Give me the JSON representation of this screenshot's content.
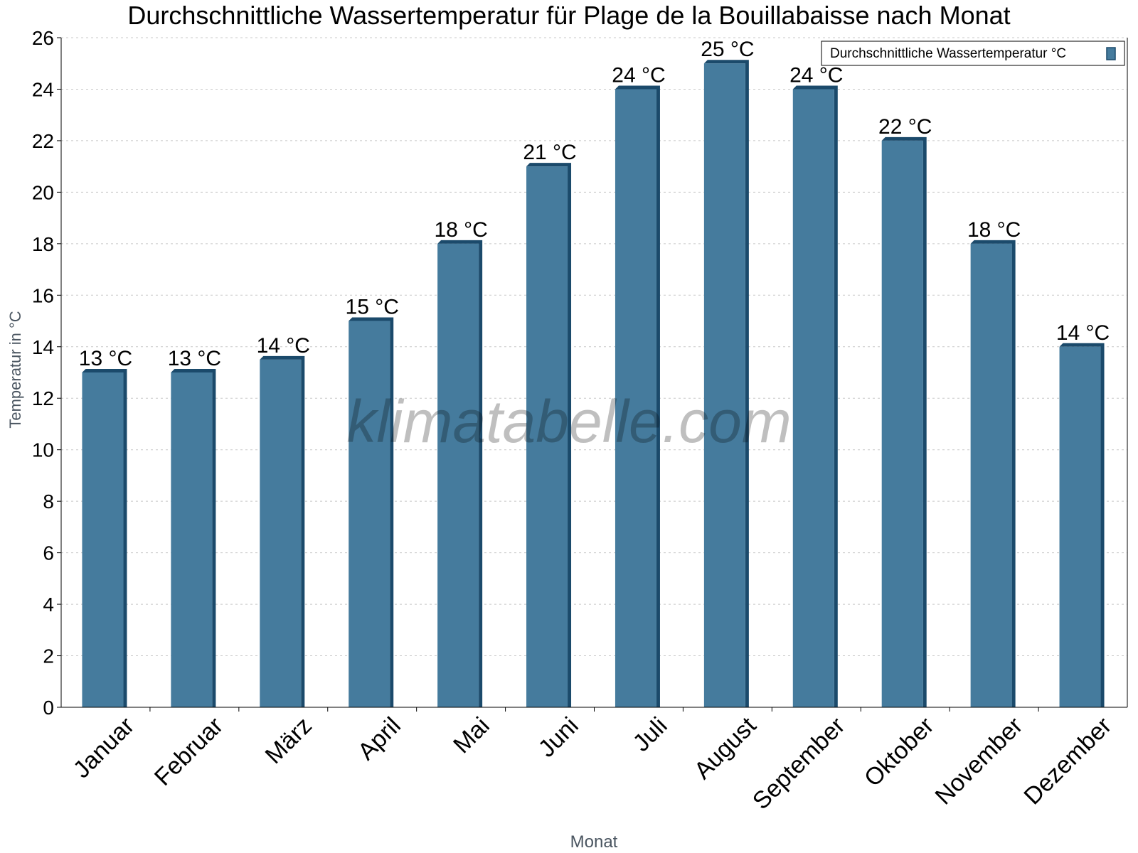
{
  "chart_data": {
    "type": "bar",
    "title": "Durchschnittliche Wassertemperatur für Plage de la Bouillabaisse nach Monat",
    "xlabel": "Monat",
    "ylabel": "Temperatur in °C",
    "ylim": [
      0,
      26
    ],
    "yticks": [
      0,
      2,
      4,
      6,
      8,
      10,
      12,
      14,
      16,
      18,
      20,
      22,
      24,
      26
    ],
    "grid": true,
    "legend_position": "top-right",
    "categories": [
      "Januar",
      "Februar",
      "März",
      "April",
      "Mai",
      "Juni",
      "Juli",
      "August",
      "September",
      "Oktober",
      "November",
      "Dezember"
    ],
    "series": [
      {
        "name": "Durchschnittliche Wassertemperatur °C",
        "color": "#457b9d",
        "values": [
          13,
          13,
          13.5,
          15,
          18,
          21,
          24,
          25,
          24,
          22,
          18,
          14
        ],
        "data_labels": [
          "13 °C",
          "13 °C",
          "14 °C",
          "15 °C",
          "18 °C",
          "21 °C",
          "24 °C",
          "25 °C",
          "24 °C",
          "22 °C",
          "18 °C",
          "14 °C"
        ]
      }
    ],
    "watermark": "klimatabelle.com"
  }
}
